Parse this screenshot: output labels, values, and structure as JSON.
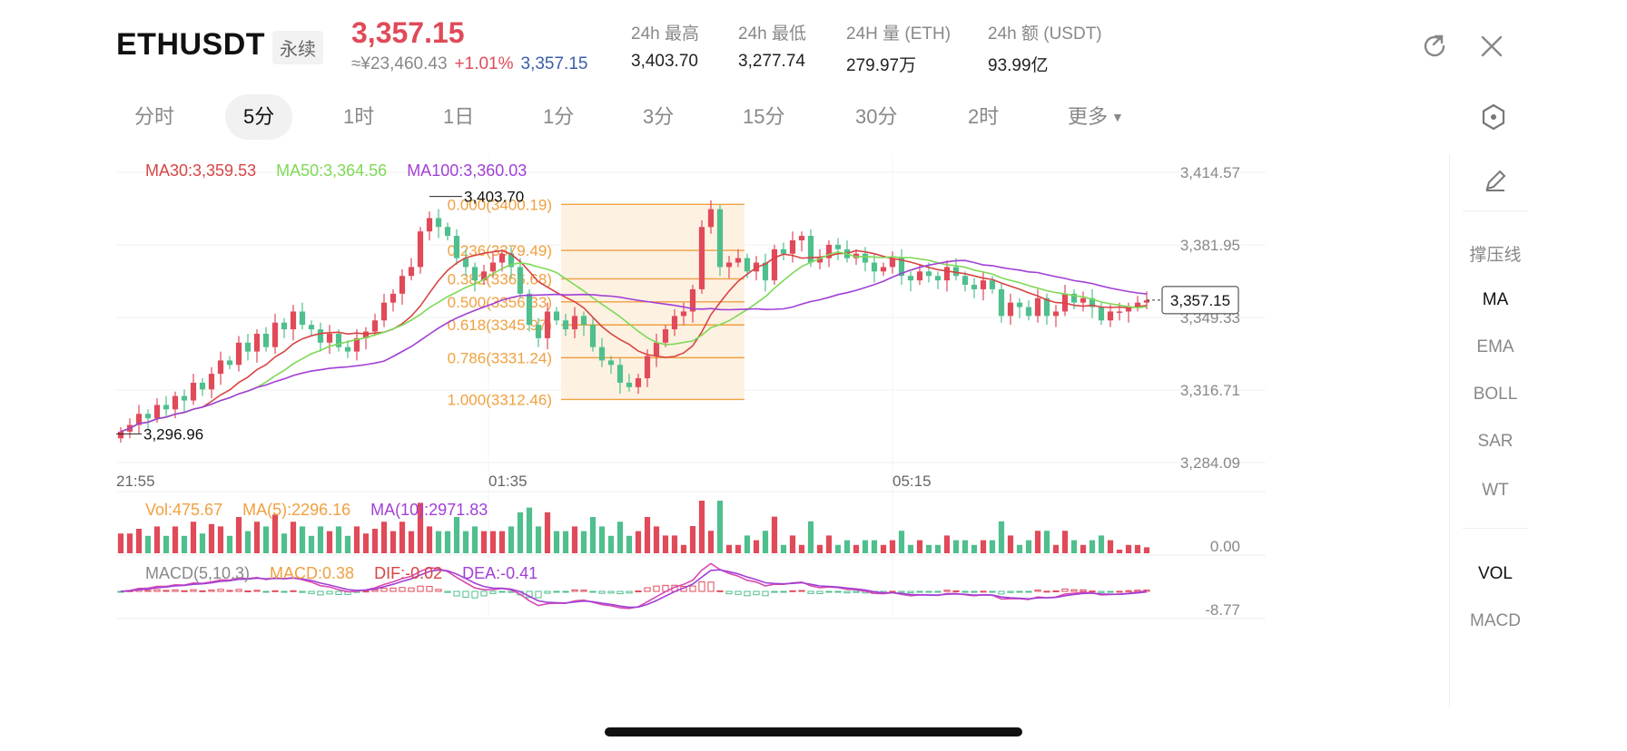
{
  "header": {
    "symbol": "ETHUSDT",
    "tag": "永续",
    "last_price": "3,357.15",
    "cny_price": "≈¥23,460.43",
    "change_pct": "+1.01%",
    "usd_price": "3,357.15",
    "stats": [
      {
        "label": "24h  最高",
        "value": "3,403.70"
      },
      {
        "label": "24h  最低",
        "value": "3,277.74"
      },
      {
        "label": "24H  量 (ETH)",
        "value": "279.97万"
      },
      {
        "label": "24h  额 (USDT)",
        "value": "93.99亿"
      }
    ]
  },
  "icons": {
    "share": "share-icon",
    "close": "close-icon",
    "settings": "hexagon-settings-icon",
    "draw": "pencil-icon"
  },
  "tabs": [
    {
      "label": "分时"
    },
    {
      "label": "5分"
    },
    {
      "label": "1时"
    },
    {
      "label": "1日"
    },
    {
      "label": "1分"
    },
    {
      "label": "3分"
    },
    {
      "label": "15分"
    },
    {
      "label": "30分"
    },
    {
      "label": "2时"
    },
    {
      "label": "更多"
    }
  ],
  "active_tab": "5分",
  "indicators": {
    "ma30": "MA30:3,359.53",
    "ma50": "MA50:3,364.56",
    "ma100": "MA100:3,360.03",
    "vol": "Vol:475.67",
    "vol_ma5": "MA(5):2296.16",
    "vol_ma10": "MA(10):2971.83",
    "macd_title": "MACD(5,10,3)",
    "macd": "MACD:0.38",
    "dif": "DIF:-0.02",
    "dea": "DEA:-0.41"
  },
  "right_panel": {
    "items": [
      "撑压线",
      "MA",
      "EMA",
      "BOLL",
      "SAR",
      "WT"
    ],
    "active": "MA",
    "bottom_items": [
      "VOL",
      "MACD"
    ]
  },
  "colors": {
    "up": "#e04a59",
    "down": "#4fbf8d",
    "ma30": "#d84444",
    "ma50": "#7ed957",
    "ma100": "#a23fd6",
    "fib": "#f0a040"
  },
  "chart_data": {
    "type": "candlestick",
    "x_ticks": [
      "21:55",
      "01:35",
      "05:15"
    ],
    "y_ticks": [
      "3,414.57",
      "3,381.95",
      "3,349.33",
      "3,316.71",
      "3,284.09"
    ],
    "ylim": [
      3284.09,
      3414.57
    ],
    "high_label": "3,403.70",
    "low_label": "3,296.96",
    "current_price_label": "3,357.15",
    "fibonacci": [
      {
        "label": "0.000(3400.19)",
        "value": 3400.19
      },
      {
        "label": "0.236(3379.49)",
        "value": 3379.49
      },
      {
        "label": "0.382(3366.68)",
        "value": 3366.68
      },
      {
        "label": "0.500(3356.33)",
        "value": 3356.33
      },
      {
        "label": "0.618(3345.97)",
        "value": 3345.97
      },
      {
        "label": "0.786(3331.24)",
        "value": 3331.24
      },
      {
        "label": "1.000(3312.46)",
        "value": 3312.46
      }
    ],
    "volume_axis_label": "0.00",
    "macd_axis_label": "-8.77",
    "closes": [
      3298,
      3301,
      3306,
      3304,
      3310,
      3308,
      3314,
      3312,
      3320,
      3317,
      3324,
      3330,
      3328,
      3338,
      3334,
      3342,
      3336,
      3347,
      3344,
      3352,
      3346,
      3344,
      3338,
      3342,
      3336,
      3334,
      3340,
      3343,
      3348,
      3356,
      3360,
      3368,
      3372,
      3388,
      3394,
      3390,
      3386,
      3376,
      3372,
      3366,
      3370,
      3374,
      3378,
      3372,
      3360,
      3346,
      3340,
      3352,
      3348,
      3344,
      3350,
      3346,
      3336,
      3330,
      3328,
      3320,
      3318,
      3322,
      3332,
      3338,
      3344,
      3350,
      3352,
      3362,
      3390,
      3398,
      3372,
      3374,
      3376,
      3370,
      3374,
      3366,
      3380,
      3378,
      3384,
      3386,
      3374,
      3376,
      3382,
      3380,
      3376,
      3378,
      3374,
      3370,
      3372,
      3376,
      3368,
      3366,
      3370,
      3368,
      3366,
      3372,
      3368,
      3364,
      3362,
      3366,
      3362,
      3350,
      3356,
      3354,
      3350,
      3358,
      3350,
      3352,
      3360,
      3356,
      3358,
      3354,
      3348,
      3352,
      3352,
      3354,
      3356,
      3357
    ]
  }
}
